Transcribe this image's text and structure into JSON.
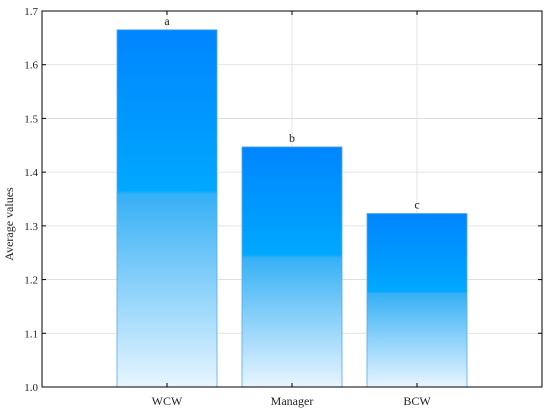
{
  "chart_data": {
    "type": "bar",
    "title": "",
    "xlabel": "",
    "ylabel": "Average values",
    "categories": [
      "WCW",
      "Manager",
      "BCW"
    ],
    "values": [
      1.665,
      1.447,
      1.323
    ],
    "data_labels": [
      "a",
      "b",
      "c"
    ],
    "ylim": [
      1.0,
      1.7
    ],
    "yticks": [
      "1.0",
      "1.1",
      "1.2",
      "1.3",
      "1.4",
      "1.5",
      "1.6",
      "1.7"
    ],
    "grid": true,
    "legend": "none",
    "colors": {
      "bar_top": "#0088ff",
      "bar_mid": "#00a8ff",
      "bar_bottom": "#e6f4ff",
      "grid": "#dcdcdc",
      "axis": "#000000"
    }
  }
}
